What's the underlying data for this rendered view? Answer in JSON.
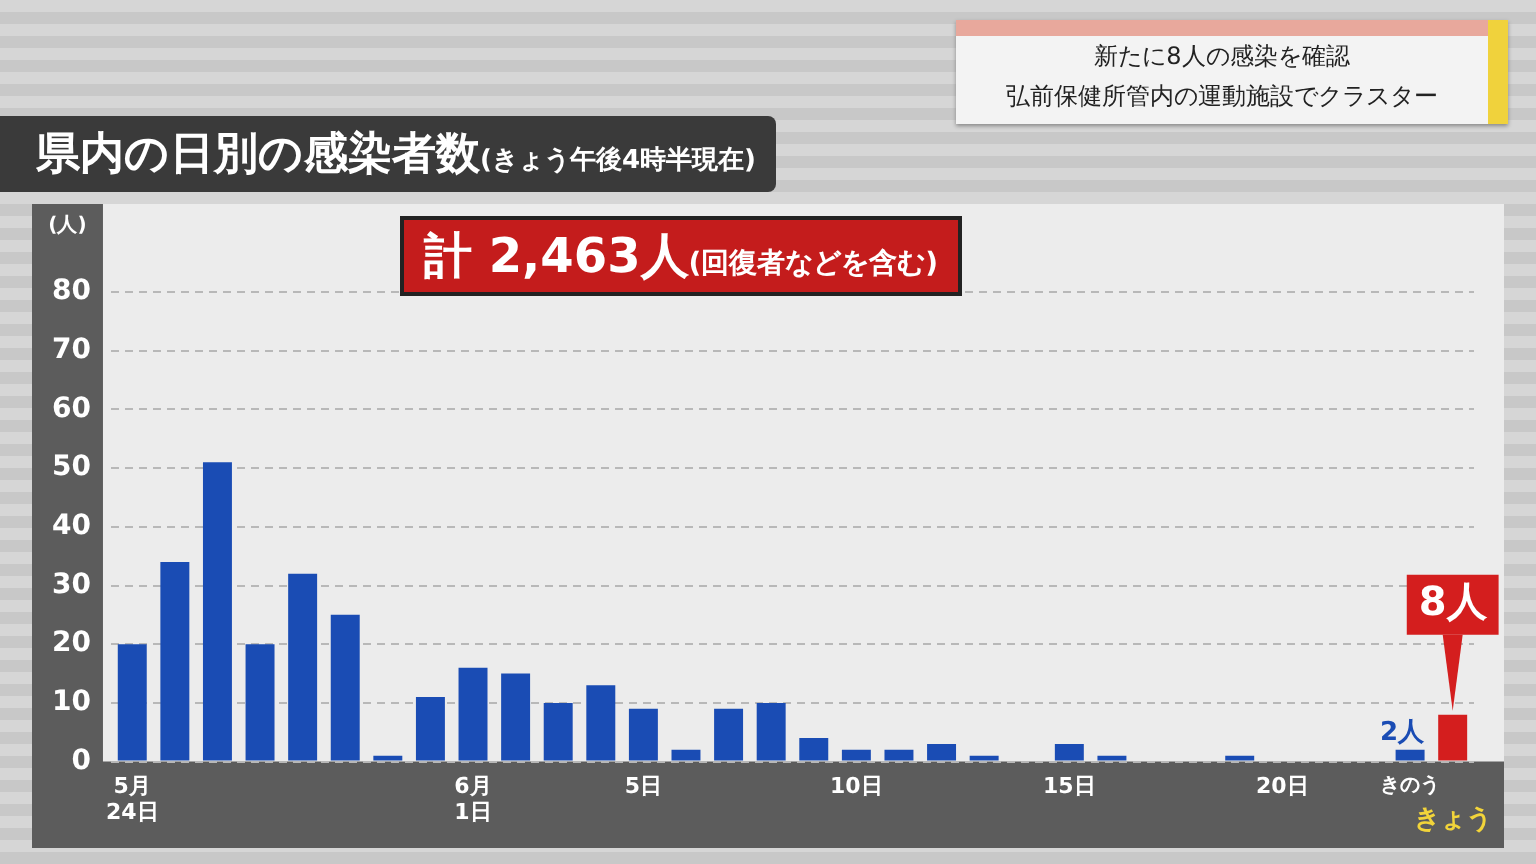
{
  "chart_data": {
    "type": "bar",
    "title": "県内の日別の感染者数",
    "subtitle": "(きょう午後4時半現在)",
    "ylabel": "(人)",
    "annotations": [
      "計 2,463人(回復者などを含む)",
      "新たに8人の感染を確認",
      "弘前保健所管内の運動施設でクラスター"
    ],
    "categories": [
      "5月\n24日",
      null,
      null,
      null,
      null,
      null,
      null,
      null,
      "6月\n1日",
      null,
      null,
      null,
      "5日",
      null,
      null,
      null,
      null,
      "10日",
      null,
      null,
      null,
      null,
      "15日",
      null,
      null,
      null,
      null,
      "20日",
      null,
      null,
      "きのう",
      "きょう"
    ],
    "values": [
      20,
      34,
      51,
      20,
      32,
      25,
      1,
      11,
      16,
      15,
      10,
      13,
      9,
      2,
      9,
      10,
      4,
      2,
      2,
      3,
      1,
      0,
      3,
      1,
      0,
      0,
      1,
      0,
      0,
      0,
      2,
      8
    ],
    "colors": [
      "#1a4cb4",
      "#1a4cb4",
      "#1a4cb4",
      "#1a4cb4",
      "#1a4cb4",
      "#1a4cb4",
      "#1a4cb4",
      "#1a4cb4",
      "#1a4cb4",
      "#1a4cb4",
      "#1a4cb4",
      "#1a4cb4",
      "#1a4cb4",
      "#1a4cb4",
      "#1a4cb4",
      "#1a4cb4",
      "#1a4cb4",
      "#1a4cb4",
      "#1a4cb4",
      "#1a4cb4",
      "#1a4cb4",
      "#1a4cb4",
      "#1a4cb4",
      "#1a4cb4",
      "#1a4cb4",
      "#1a4cb4",
      "#1a4cb4",
      "#1a4cb4",
      "#1a4cb4",
      "#1a4cb4",
      "#1a4cb4",
      "#d41e1e"
    ],
    "value_labels": [
      null,
      null,
      null,
      null,
      null,
      null,
      null,
      null,
      null,
      null,
      null,
      null,
      null,
      null,
      null,
      null,
      null,
      null,
      null,
      null,
      null,
      null,
      null,
      null,
      null,
      null,
      null,
      null,
      null,
      null,
      "2人",
      "8人"
    ],
    "ylim": [
      0,
      80
    ],
    "yticks": [
      0,
      10,
      20,
      30,
      40,
      50,
      60,
      70,
      80
    ],
    "grid": "y",
    "legend": false
  }
}
